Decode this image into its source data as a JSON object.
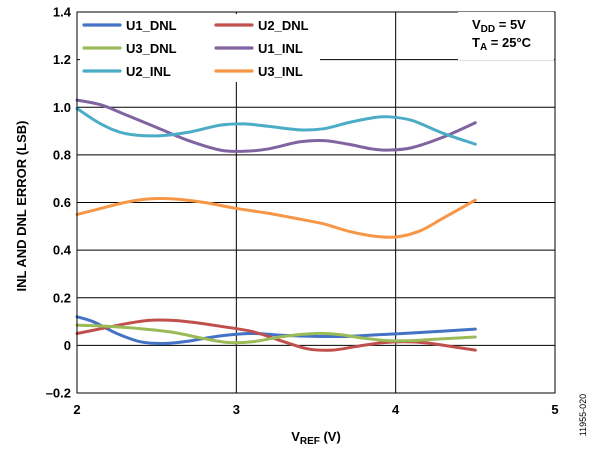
{
  "chart_data": {
    "type": "line",
    "title": "",
    "xlabel": {
      "main": "V",
      "sub": "REF",
      "unit": " (V)"
    },
    "ylabel": "INL AND DNL ERROR (LSB)",
    "xlim": [
      2,
      5
    ],
    "ylim": [
      -0.2,
      1.4
    ],
    "xticks": [
      2,
      3,
      4,
      5
    ],
    "yticks": [
      -0.2,
      0,
      0.2,
      0.4,
      0.6,
      0.8,
      1.0,
      1.2,
      1.4
    ],
    "xtick_labels": [
      "2",
      "3",
      "4",
      "5"
    ],
    "ytick_labels": [
      "–0.2",
      "0",
      "0.2",
      "0.4",
      "0.6",
      "0.8",
      "1.0",
      "1.2",
      "1.4"
    ],
    "grid": true,
    "legend_position": "top-left",
    "conditions": [
      {
        "main": "V",
        "sub": "DD",
        "rest": " = 5V"
      },
      {
        "main": "T",
        "sub": "A",
        "rest": " = 25°C"
      }
    ],
    "figure_id": "11955-020",
    "series": [
      {
        "name": "U1_DNL",
        "color": "#4472C4",
        "x": [
          2.0,
          2.1,
          2.25,
          2.4,
          2.55,
          2.7,
          2.9,
          3.1,
          3.3,
          3.5,
          3.7,
          3.9,
          4.1,
          4.3,
          4.5
        ],
        "y": [
          0.12,
          0.1,
          0.05,
          0.015,
          0.008,
          0.018,
          0.04,
          0.05,
          0.042,
          0.038,
          0.038,
          0.045,
          0.052,
          0.06,
          0.068
        ]
      },
      {
        "name": "U2_DNL",
        "color": "#C0504D",
        "x": [
          2.0,
          2.15,
          2.3,
          2.45,
          2.6,
          2.75,
          2.9,
          3.1,
          3.3,
          3.45,
          3.6,
          3.75,
          3.9,
          4.05,
          4.2,
          4.35,
          4.5
        ],
        "y": [
          0.05,
          0.07,
          0.09,
          0.105,
          0.105,
          0.095,
          0.08,
          0.058,
          0.015,
          -0.015,
          -0.02,
          -0.005,
          0.01,
          0.015,
          0.01,
          -0.005,
          -0.02
        ]
      },
      {
        "name": "U3_DNL",
        "color": "#9BBB59",
        "x": [
          2.0,
          2.2,
          2.4,
          2.6,
          2.8,
          2.95,
          3.1,
          3.3,
          3.5,
          3.65,
          3.8,
          3.95,
          4.1,
          4.3,
          4.5
        ],
        "y": [
          0.085,
          0.08,
          0.07,
          0.055,
          0.028,
          0.012,
          0.015,
          0.038,
          0.05,
          0.045,
          0.03,
          0.02,
          0.02,
          0.028,
          0.035
        ]
      },
      {
        "name": "U1_INL",
        "color": "#8064A2",
        "x": [
          2.0,
          2.15,
          2.3,
          2.5,
          2.7,
          2.9,
          3.05,
          3.2,
          3.4,
          3.55,
          3.7,
          3.85,
          3.95,
          4.1,
          4.3,
          4.5
        ],
        "y": [
          1.03,
          1.01,
          0.97,
          0.915,
          0.86,
          0.82,
          0.815,
          0.825,
          0.855,
          0.86,
          0.845,
          0.825,
          0.82,
          0.83,
          0.875,
          0.935
        ]
      },
      {
        "name": "U2_INL",
        "color": "#4BACC6",
        "x": [
          2.0,
          2.15,
          2.3,
          2.5,
          2.7,
          2.9,
          3.05,
          3.2,
          3.4,
          3.55,
          3.7,
          3.85,
          3.95,
          4.1,
          4.3,
          4.5
        ],
        "y": [
          0.995,
          0.93,
          0.89,
          0.88,
          0.895,
          0.925,
          0.93,
          0.92,
          0.905,
          0.91,
          0.935,
          0.955,
          0.96,
          0.945,
          0.89,
          0.845
        ]
      },
      {
        "name": "U3_INL",
        "color": "#F79646",
        "x": [
          2.0,
          2.15,
          2.3,
          2.45,
          2.6,
          2.8,
          3.0,
          3.2,
          3.4,
          3.55,
          3.7,
          3.85,
          4.0,
          4.15,
          4.3,
          4.5
        ],
        "y": [
          0.55,
          0.575,
          0.6,
          0.615,
          0.615,
          0.6,
          0.575,
          0.555,
          0.53,
          0.51,
          0.48,
          0.46,
          0.455,
          0.48,
          0.535,
          0.61
        ]
      }
    ]
  }
}
